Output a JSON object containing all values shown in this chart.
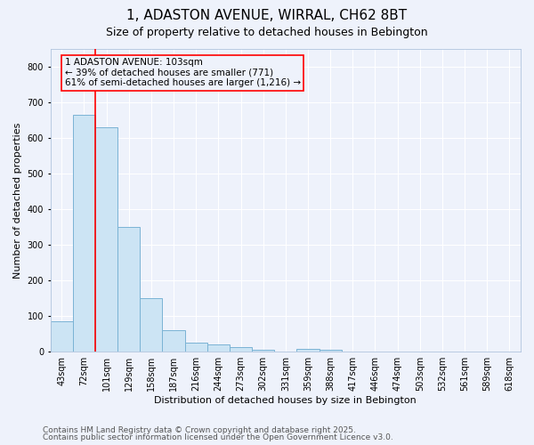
{
  "title": "1, ADASTON AVENUE, WIRRAL, CH62 8BT",
  "subtitle": "Size of property relative to detached houses in Bebington",
  "xlabel": "Distribution of detached houses by size in Bebington",
  "ylabel": "Number of detached properties",
  "categories": [
    "43sqm",
    "72sqm",
    "101sqm",
    "129sqm",
    "158sqm",
    "187sqm",
    "216sqm",
    "244sqm",
    "273sqm",
    "302sqm",
    "331sqm",
    "359sqm",
    "388sqm",
    "417sqm",
    "446sqm",
    "474sqm",
    "503sqm",
    "532sqm",
    "561sqm",
    "589sqm",
    "618sqm"
  ],
  "values": [
    85,
    665,
    630,
    350,
    150,
    60,
    25,
    20,
    12,
    5,
    0,
    8,
    5,
    0,
    0,
    0,
    0,
    0,
    0,
    0,
    0
  ],
  "bar_color": "#cce4f4",
  "bar_edge_color": "#7ab3d4",
  "red_line_x": 1.5,
  "annotation_text": "1 ADASTON AVENUE: 103sqm\n← 39% of detached houses are smaller (771)\n61% of semi-detached houses are larger (1,216) →",
  "ylim": [
    0,
    850
  ],
  "yticks": [
    0,
    100,
    200,
    300,
    400,
    500,
    600,
    700,
    800
  ],
  "footer1": "Contains HM Land Registry data © Crown copyright and database right 2025.",
  "footer2": "Contains public sector information licensed under the Open Government Licence v3.0.",
  "bg_color": "#eef2fb",
  "grid_color": "#ffffff",
  "title_fontsize": 11,
  "subtitle_fontsize": 9,
  "axis_label_fontsize": 8,
  "tick_fontsize": 7,
  "footer_fontsize": 6.5,
  "ann_fontsize": 7.5
}
